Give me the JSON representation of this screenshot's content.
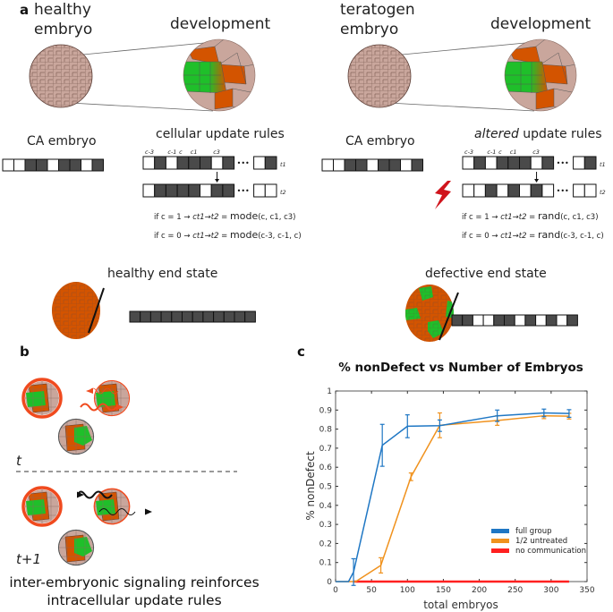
{
  "panel_a": {
    "label": "a",
    "left": {
      "embryo_title_line1": "healthy",
      "embryo_title_line2": "embryo",
      "development": "development",
      "rules_title": "cellular update rules",
      "ca_embryo": "CA embryo",
      "ca_cells": [
        0,
        0,
        1,
        1,
        0,
        1,
        1,
        0,
        1
      ],
      "t1_cells": [
        0,
        1,
        0,
        1,
        1,
        1,
        0,
        1
      ],
      "t1_tail": [
        0,
        1
      ],
      "t2_cells": [
        0,
        1,
        1,
        1,
        1,
        0,
        1,
        1
      ],
      "t2_tail": [
        0,
        0
      ],
      "cell_labels": [
        "c-3",
        "c-1",
        "c",
        "c1",
        "c3"
      ],
      "t1": "t1",
      "t2": "t2",
      "rule1_cond": "if c = 1 →",
      "rule1_lhs": "ct1→t2 =",
      "rule1_fn": "mode",
      "rule1_args": "(c, c1, c3)",
      "rule2_cond": "if c = 0 →",
      "rule2_lhs": "ct1→t2 =",
      "rule2_fn": "mode",
      "rule2_args": "(c-3, c-1, c)",
      "end_state": "healthy end state",
      "end_cells": [
        1,
        1,
        1,
        1,
        1,
        1,
        1,
        1,
        1,
        1,
        1,
        1
      ]
    },
    "right": {
      "embryo_title_line1": "teratogen",
      "embryo_title_line2": "embryo",
      "development": "development",
      "rules_title_italic": "altered",
      "rules_title_rest": " update rules",
      "ca_embryo": "CA embryo",
      "ca_cells": [
        0,
        0,
        1,
        1,
        0,
        1,
        1,
        0,
        1
      ],
      "t1_cells": [
        0,
        1,
        0,
        1,
        1,
        1,
        0,
        1
      ],
      "t1_tail": [
        0,
        1
      ],
      "t2_cells": [
        0,
        0,
        1,
        0,
        1,
        0,
        1,
        0
      ],
      "t2_tail": [
        0,
        0
      ],
      "cell_labels": [
        "c-3",
        "c-1",
        "c",
        "c1",
        "c3"
      ],
      "t1": "t1",
      "t2": "t2",
      "rule1_cond": "if c = 1 →",
      "rule1_lhs": "ct1→t2 =",
      "rule1_fn": "rand",
      "rule1_args": "(c, c1, c3)",
      "rule2_cond": "if c = 0 →",
      "rule2_lhs": "ct1→t2 =",
      "rule2_fn": "rand",
      "rule2_args": "(c-3, c-1, c)",
      "end_state": "defective end state",
      "end_cells": [
        1,
        1,
        0,
        0,
        1,
        1,
        0,
        1,
        0,
        1,
        0,
        1
      ]
    },
    "ellipsis": "•••"
  },
  "panel_b": {
    "label": "b",
    "t_label": "t",
    "t1_label": "t+1",
    "caption_line1": "inter-embryonic signaling reinforces",
    "caption_line2": "intracellular update rules"
  },
  "colors": {
    "tissue": "#c9a69c",
    "orange": "#d35400",
    "green": "#1fbf2a",
    "dark_cell": "#4a4a4a",
    "signal_red": "#f04a1e",
    "lightning": "#d0141c"
  },
  "chart_data": {
    "panel_label": "c",
    "type": "line",
    "title": "% nonDefect vs Number of Embryos",
    "xlabel": "total embryos",
    "ylabel": "% nonDefect",
    "xlim": [
      0,
      350
    ],
    "ylim": [
      0,
      1
    ],
    "xticks": [
      0,
      50,
      100,
      150,
      200,
      250,
      300,
      350
    ],
    "yticks": [
      0,
      0.1,
      0.2,
      0.3,
      0.4,
      0.5,
      0.6,
      0.7,
      0.8,
      0.9,
      1
    ],
    "legend_position": "bottom-right",
    "series": [
      {
        "name": "full group",
        "color": "#1f77c4",
        "x": [
          0,
          18,
          25,
          65,
          100,
          145,
          225,
          290,
          325
        ],
        "y": [
          0,
          0,
          0.05,
          0.715,
          0.815,
          0.818,
          0.87,
          0.885,
          0.882
        ],
        "err": [
          0,
          0,
          0.07,
          0.11,
          0.06,
          0.03,
          0.03,
          0.02,
          0.02
        ]
      },
      {
        "name": "1/2 untreated",
        "color": "#f0921e",
        "x": [
          0,
          28,
          63,
          105,
          145,
          225,
          290,
          325
        ],
        "y": [
          0,
          0,
          0.085,
          0.55,
          0.82,
          0.845,
          0.87,
          0.868
        ],
        "err": [
          0,
          0,
          0.04,
          0.02,
          0.065,
          0.025,
          0.015,
          0.015
        ]
      },
      {
        "name": "no communication",
        "color": "#ff2020",
        "x": [
          25,
          65,
          100,
          145,
          225,
          290,
          325
        ],
        "y": [
          0,
          0,
          0,
          0,
          0,
          0,
          0
        ],
        "err": [
          0,
          0,
          0,
          0,
          0,
          0,
          0
        ]
      }
    ]
  }
}
